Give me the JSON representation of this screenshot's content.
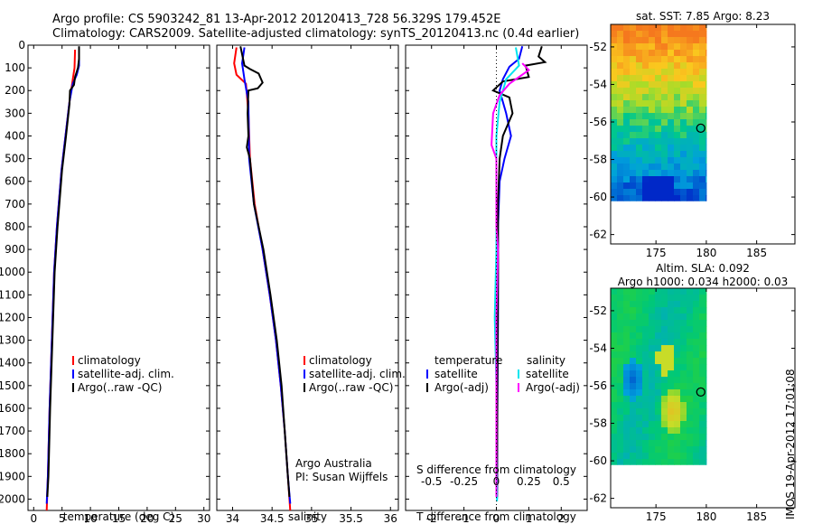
{
  "title": {
    "line1": "Argo profile: CS 5903242_81 13-Apr-2012 20120413_728 56.329S 179.452E",
    "line2": "Climatology: CARS2009. Satellite-adjusted climatology: synTS_20120413.nc (0.4d earlier)"
  },
  "stamp": "IMOS 19-Apr-2012 17:01:08",
  "colors": {
    "climatology": "#ff0000",
    "satellite": "#0000ff",
    "argo": "#000000",
    "sal_satellite": "#00e5ee",
    "sal_argo": "#ff00ff"
  },
  "chart_data": [
    {
      "type": "line",
      "xlabel": "temperature (deg C)",
      "ylabel": "",
      "xlim": [
        -1,
        31
      ],
      "ylim": [
        2050,
        0
      ],
      "xticks": [
        0,
        5,
        10,
        15,
        20,
        25,
        30
      ],
      "yticks": [
        0,
        100,
        200,
        300,
        400,
        500,
        600,
        700,
        800,
        900,
        1000,
        1100,
        1200,
        1300,
        1400,
        1500,
        1600,
        1700,
        1800,
        1900,
        2000
      ],
      "legend": [
        "climatology",
        "satellite-adj. clim.",
        "Argo(..raw -QC)"
      ],
      "series": [
        {
          "name": "climatology",
          "color": "#ff0000",
          "points": [
            [
              7.3,
              20
            ],
            [
              7.2,
              100
            ],
            [
              6.9,
              150
            ],
            [
              6.3,
              250
            ],
            [
              5.6,
              400
            ],
            [
              4.9,
              550
            ],
            [
              4.1,
              800
            ],
            [
              3.6,
              1000
            ],
            [
              3.2,
              1300
            ],
            [
              2.8,
              1600
            ],
            [
              2.5,
              1900
            ],
            [
              2.3,
              2050
            ]
          ]
        },
        {
          "name": "satellite-adj. clim.",
          "color": "#0000ff",
          "points": [
            [
              8.0,
              20
            ],
            [
              8.0,
              90
            ],
            [
              7.6,
              130
            ],
            [
              6.9,
              170
            ],
            [
              6.3,
              250
            ],
            [
              5.6,
              400
            ],
            [
              4.9,
              550
            ],
            [
              4.1,
              800
            ],
            [
              3.6,
              1000
            ],
            [
              3.2,
              1300
            ],
            [
              2.8,
              1600
            ],
            [
              2.5,
              1900
            ],
            [
              2.3,
              2020
            ]
          ]
        },
        {
          "name": "Argo(..raw -QC)",
          "color": "#000000",
          "points": [
            [
              8.0,
              5
            ],
            [
              8.0,
              60
            ],
            [
              7.8,
              100
            ],
            [
              7.3,
              140
            ],
            [
              7.1,
              175
            ],
            [
              6.4,
              200
            ],
            [
              6.3,
              260
            ],
            [
              5.7,
              400
            ],
            [
              5.0,
              550
            ],
            [
              4.2,
              800
            ],
            [
              3.7,
              1000
            ],
            [
              3.3,
              1300
            ],
            [
              2.9,
              1600
            ],
            [
              2.6,
              1900
            ],
            [
              2.4,
              1990
            ]
          ]
        }
      ]
    },
    {
      "type": "line",
      "xlabel": "salinity",
      "ylabel": "",
      "xlim": [
        33.8,
        36.1
      ],
      "ylim": [
        2050,
        0
      ],
      "xticks": [
        34,
        34.5,
        35,
        35.5,
        36
      ],
      "legend": [
        "climatology",
        "satellite-adj. clim.",
        "Argo(..raw -QC)"
      ],
      "annotation": [
        "Argo Australia",
        "PI: Susan Wijffels"
      ],
      "series": [
        {
          "name": "climatology",
          "color": "#ff0000",
          "points": [
            [
              34.05,
              10
            ],
            [
              34.02,
              80
            ],
            [
              34.05,
              130
            ],
            [
              34.17,
              170
            ],
            [
              34.2,
              300
            ],
            [
              34.22,
              500
            ],
            [
              34.28,
              700
            ],
            [
              34.38,
              900
            ],
            [
              34.47,
              1100
            ],
            [
              34.55,
              1300
            ],
            [
              34.61,
              1500
            ],
            [
              34.66,
              1700
            ],
            [
              34.7,
              1900
            ],
            [
              34.73,
              2050
            ]
          ]
        },
        {
          "name": "satellite-adj. clim.",
          "color": "#0000ff",
          "points": [
            [
              34.15,
              10
            ],
            [
              34.12,
              80
            ],
            [
              34.15,
              150
            ],
            [
              34.2,
              250
            ],
            [
              34.21,
              500
            ],
            [
              34.27,
              700
            ],
            [
              34.38,
              900
            ],
            [
              34.47,
              1100
            ],
            [
              34.55,
              1300
            ],
            [
              34.61,
              1500
            ],
            [
              34.66,
              1700
            ],
            [
              34.7,
              1900
            ],
            [
              34.73,
              2020
            ]
          ]
        },
        {
          "name": "Argo(..raw -QC)",
          "color": "#000000",
          "points": [
            [
              34.1,
              5
            ],
            [
              34.15,
              90
            ],
            [
              34.22,
              105
            ],
            [
              34.33,
              125
            ],
            [
              34.38,
              165
            ],
            [
              34.32,
              190
            ],
            [
              34.2,
              200
            ],
            [
              34.19,
              300
            ],
            [
              34.2,
              400
            ],
            [
              34.18,
              450
            ],
            [
              34.22,
              500
            ],
            [
              34.27,
              700
            ],
            [
              34.39,
              900
            ],
            [
              34.48,
              1100
            ],
            [
              34.56,
              1300
            ],
            [
              34.62,
              1500
            ],
            [
              34.66,
              1700
            ],
            [
              34.7,
              1900
            ],
            [
              34.72,
              1990
            ]
          ]
        }
      ]
    },
    {
      "type": "line",
      "xlabel": "T difference from climatology",
      "xlabel2": "S difference from climatology",
      "xlim": [
        -2.8,
        2.8
      ],
      "ylim": [
        2050,
        0
      ],
      "xticks": [
        -2,
        -1,
        0,
        1,
        2
      ],
      "xticks2": [
        "-0.5",
        "-0.25",
        "0",
        "0.25",
        "0.5"
      ],
      "legend_left_title": "temperature",
      "legend_right_title": "salinity",
      "legend_left": [
        "satellite",
        "Argo(-adj)"
      ],
      "legend_right": [
        "satellite",
        "Argo(-adj)"
      ],
      "series": [
        {
          "name": "satellite",
          "group": "temperature",
          "color": "#0000ff",
          "points": [
            [
              0.8,
              5
            ],
            [
              0.7,
              60
            ],
            [
              0.4,
              95
            ],
            [
              0.2,
              150
            ],
            [
              0.1,
              200
            ],
            [
              0.3,
              300
            ],
            [
              0.45,
              400
            ],
            [
              0.25,
              500
            ],
            [
              0.1,
              600
            ],
            [
              0.05,
              800
            ],
            [
              0.05,
              1200
            ],
            [
              0.03,
              1600
            ],
            [
              0.02,
              2000
            ]
          ]
        },
        {
          "name": "Argo(-adj)",
          "group": "temperature",
          "color": "#000000",
          "points": [
            [
              1.4,
              5
            ],
            [
              1.3,
              50
            ],
            [
              1.5,
              75
            ],
            [
              0.9,
              90
            ],
            [
              1.0,
              140
            ],
            [
              0.2,
              160
            ],
            [
              -0.1,
              200
            ],
            [
              0.4,
              230
            ],
            [
              0.5,
              300
            ],
            [
              0.2,
              400
            ],
            [
              0.1,
              500
            ],
            [
              0.05,
              700
            ],
            [
              0.05,
              1000
            ],
            [
              0.03,
              1500
            ],
            [
              0.02,
              1990
            ]
          ]
        },
        {
          "name": "satellite",
          "group": "salinity",
          "color": "#00e5ee",
          "points": [
            [
              0.6,
              10
            ],
            [
              0.7,
              90
            ],
            [
              0.3,
              150
            ],
            [
              0.1,
              250
            ],
            [
              0.0,
              400
            ],
            [
              0.0,
              600
            ],
            [
              0.0,
              900
            ],
            [
              -0.05,
              1200
            ],
            [
              0.0,
              1500
            ],
            [
              0.0,
              1800
            ],
            [
              0.02,
              2010
            ]
          ]
        },
        {
          "name": "Argo(-adj)",
          "group": "salinity",
          "color": "#ff00ff",
          "points": [
            [
              0.8,
              80
            ],
            [
              1.0,
              110
            ],
            [
              0.7,
              140
            ],
            [
              0.4,
              170
            ],
            [
              0.1,
              220
            ],
            [
              -0.1,
              300
            ],
            [
              -0.15,
              440
            ],
            [
              0.0,
              500
            ],
            [
              0.0,
              800
            ],
            [
              0.05,
              900
            ],
            [
              0.0,
              1200
            ],
            [
              0.0,
              1990
            ]
          ]
        }
      ]
    },
    {
      "type": "heatmap",
      "title": "sat. SST: 7.85 Argo: 8.23",
      "xlim": [
        170.5,
        188.8
      ],
      "ylim": [
        -62.5,
        -50.8
      ],
      "xticks": [
        175,
        180,
        185
      ],
      "yticks": [
        -52,
        -54,
        -56,
        -58,
        -60,
        -62
      ],
      "data_extent": {
        "lon": [
          170.5,
          180.0
        ],
        "lat": [
          -60.2,
          -50.8
        ]
      },
      "marker": {
        "lon": 179.45,
        "lat": -56.33
      }
    },
    {
      "type": "heatmap",
      "title": "Altim. SLA: 0.092",
      "subtitle": "Argo h1000: 0.034 h2000: 0.03",
      "xlim": [
        170.5,
        188.8
      ],
      "ylim": [
        -62.5,
        -50.8
      ],
      "xticks": [
        175,
        180,
        185
      ],
      "yticks": [
        -52,
        -54,
        -56,
        -58,
        -60,
        -62
      ],
      "data_extent": {
        "lon": [
          170.5,
          180.0
        ],
        "lat": [
          -60.2,
          -50.8
        ]
      },
      "marker": {
        "lon": 179.45,
        "lat": -56.33
      }
    }
  ]
}
